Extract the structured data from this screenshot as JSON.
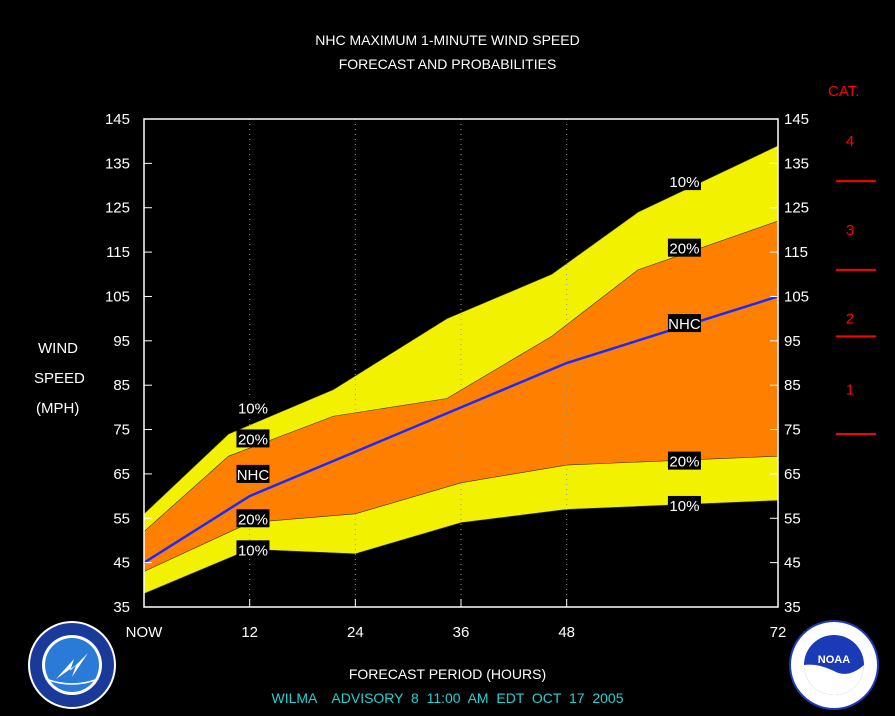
{
  "chart_data": {
    "type": "area",
    "title": "NHC MAXIMUM 1-MINUTE WIND SPEED",
    "subtitle": "FORECAST AND PROBABILITIES",
    "ylabel_lines": [
      "WIND",
      "SPEED",
      "(MPH)"
    ],
    "xlabel": "FORECAST PERIOD (HOURS)",
    "footer": "WILMA    ADVISORY  8  11:00  AM  EDT  OCT  17  2005",
    "xlim": [
      0,
      72
    ],
    "ylim": [
      35,
      145
    ],
    "y_ticks": [
      35,
      45,
      55,
      65,
      75,
      85,
      95,
      105,
      115,
      125,
      135,
      145
    ],
    "x_ticks": [
      {
        "value": 0,
        "label": "NOW"
      },
      {
        "value": 12,
        "label": "12"
      },
      {
        "value": 24,
        "label": "24"
      },
      {
        "value": 36,
        "label": "36"
      },
      {
        "value": 48,
        "label": "48"
      },
      {
        "value": 72,
        "label": "72"
      }
    ],
    "x": [
      0,
      10,
      22,
      34,
      46,
      58,
      70
    ],
    "x_values": [
      0,
      9.6,
      21.5,
      33,
      44.6,
      56.1,
      72
    ],
    "series": [
      {
        "name": "10%",
        "role": "upper10",
        "x": [
          0,
          9.6,
          21.5,
          34.4,
          46.3,
          56.1,
          72
        ],
        "values": [
          56,
          74,
          84,
          100,
          110,
          124,
          139
        ]
      },
      {
        "name": "20%",
        "role": "upper20",
        "x": [
          0,
          9.6,
          21.5,
          34.4,
          46.3,
          56.1,
          72
        ],
        "values": [
          52,
          69,
          78,
          82,
          96,
          111,
          122
        ]
      },
      {
        "name": "NHC",
        "role": "nhc",
        "x": [
          0,
          12,
          24,
          36,
          48,
          72
        ],
        "values": [
          45,
          60,
          70,
          80,
          90,
          105
        ]
      },
      {
        "name": "20%",
        "role": "lower20",
        "x": [
          0,
          12,
          24,
          36,
          48,
          72
        ],
        "values": [
          43,
          54,
          56,
          63,
          67,
          69
        ]
      },
      {
        "name": "10%",
        "role": "lower10",
        "x": [
          0,
          12,
          24,
          36,
          48,
          72
        ],
        "values": [
          38,
          48,
          47,
          54,
          57,
          59
        ]
      }
    ],
    "band_labels": [
      {
        "text": "10%",
        "x": 10.5,
        "y": 80
      },
      {
        "text": "20%",
        "x": 10.5,
        "y": 73
      },
      {
        "text": "NHC",
        "x": 10.5,
        "y": 65
      },
      {
        "text": "20%",
        "x": 10.5,
        "y": 55
      },
      {
        "text": "10%",
        "x": 10.5,
        "y": 48
      },
      {
        "text": "10%",
        "x": 59.5,
        "y": 131
      },
      {
        "text": "20%",
        "x": 59.5,
        "y": 116
      },
      {
        "text": "NHC",
        "x": 59.5,
        "y": 99
      },
      {
        "text": "20%",
        "x": 59.5,
        "y": 68
      },
      {
        "text": "10%",
        "x": 59.5,
        "y": 58
      }
    ],
    "categories_label": "CAT.",
    "category_bands": [
      {
        "label": "4",
        "y": 140
      },
      {
        "label": "3",
        "y": 120
      },
      {
        "label": "2",
        "y": 100
      },
      {
        "label": "1",
        "y": 84
      }
    ],
    "category_boundaries": [
      131,
      111,
      96,
      74
    ],
    "colors": {
      "outer_band": "#f2f200",
      "inner_band": "#ff8000",
      "nhc_line": "#1a2aff",
      "category": "#ff0000",
      "frame": "#ffffff"
    }
  },
  "logos": {
    "left": "nws-logo",
    "right": "noaa-logo"
  }
}
